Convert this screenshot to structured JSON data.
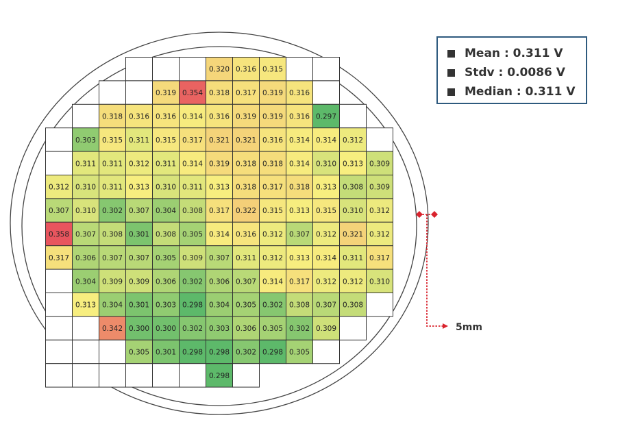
{
  "stats": [
    {
      "text": "Mean : 0.311 V"
    },
    {
      "text": "Stdv : 0.0086 V"
    },
    {
      "text": "Median : 0.311 V"
    }
  ],
  "scale_label": "5mm",
  "colors": {
    "grid_line": "#333333",
    "indicator": "#d9232d",
    "stats_border": "#2e5a7e",
    "scale_low": "#5db96a",
    "scale_mid": "#f7ee7f",
    "scale_high": "#e8555e"
  },
  "chart_data": {
    "type": "heatmap",
    "unit": "V",
    "color_range": [
      0.298,
      0.358
    ],
    "rows": [
      [
        null,
        null,
        null,
        0.32,
        0.316,
        0.315,
        null,
        null
      ],
      [
        null,
        null,
        0.319,
        0.354,
        0.318,
        0.317,
        0.319,
        0.316,
        null
      ],
      [
        null,
        0.318,
        0.316,
        0.316,
        0.314,
        0.316,
        0.319,
        0.319,
        0.316,
        0.297,
        null
      ],
      [
        null,
        0.303,
        0.315,
        0.311,
        0.315,
        0.317,
        0.321,
        0.321,
        0.316,
        0.314,
        0.314,
        0.312,
        null
      ],
      [
        null,
        0.311,
        0.311,
        0.312,
        0.311,
        0.314,
        0.319,
        0.318,
        0.318,
        0.314,
        0.31,
        0.313,
        0.309
      ],
      [
        0.312,
        0.31,
        0.311,
        0.313,
        0.31,
        0.311,
        0.313,
        0.318,
        0.317,
        0.318,
        0.313,
        0.308,
        0.309
      ],
      [
        0.307,
        0.31,
        0.302,
        0.307,
        0.304,
        0.308,
        0.317,
        0.322,
        0.315,
        0.313,
        0.315,
        0.31,
        0.312
      ],
      [
        0.358,
        0.307,
        0.308,
        0.301,
        0.308,
        0.305,
        0.314,
        0.316,
        0.312,
        0.307,
        0.312,
        0.321,
        0.312
      ],
      [
        0.317,
        0.306,
        0.307,
        0.307,
        0.305,
        0.309,
        0.307,
        0.311,
        0.312,
        0.313,
        0.314,
        0.311,
        0.317
      ],
      [
        null,
        0.304,
        0.309,
        0.309,
        0.306,
        0.302,
        0.306,
        0.307,
        0.314,
        0.317,
        0.312,
        0.312,
        0.31
      ],
      [
        null,
        0.313,
        0.304,
        0.301,
        0.303,
        0.298,
        0.304,
        0.305,
        0.302,
        0.308,
        0.307,
        0.308,
        null
      ],
      [
        null,
        null,
        0.342,
        0.3,
        0.3,
        0.302,
        0.303,
        0.306,
        0.305,
        0.302,
        0.309,
        null
      ],
      [
        null,
        null,
        null,
        0.305,
        0.301,
        0.298,
        0.298,
        0.302,
        0.298,
        0.305,
        null
      ],
      [
        null,
        null,
        null,
        null,
        null,
        null,
        0.298,
        null
      ]
    ]
  }
}
